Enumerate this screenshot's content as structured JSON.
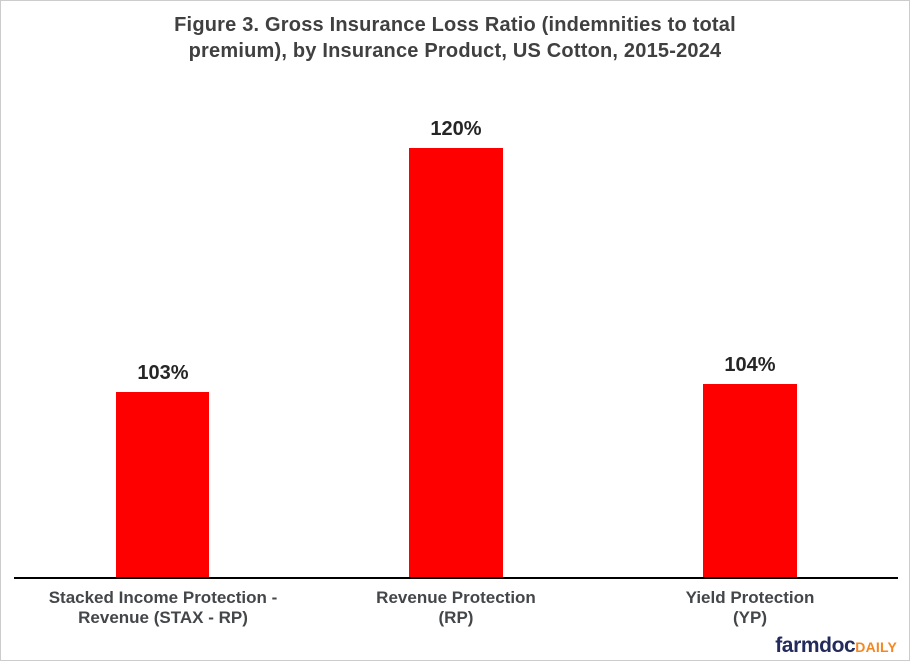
{
  "figure": {
    "title": {
      "line1": "Figure 3. Gross Insurance Loss Ratio (indemnities to total",
      "line2": "premium), by Insurance Product, US Cotton, 2015-2024"
    }
  },
  "chart_data": {
    "type": "bar",
    "title": "Figure 3. Gross Insurance Loss Ratio (indemnities to total premium), by Insurance Product, US Cotton, 2015-2024",
    "categories": [
      "Stacked Income Protection - Revenue (STAX - RP)",
      "Revenue Protection (RP)",
      "Yield Protection (YP)"
    ],
    "values": [
      103,
      120,
      104
    ],
    "unit": "%",
    "xlabel": "",
    "ylabel": "",
    "grid": false,
    "legend": false,
    "data_labels_shown": true,
    "bar_color": "#ff0000",
    "axis_line_color": "#000000",
    "bars": [
      {
        "category_line1": "Stacked Income Protection -",
        "category_line2": "Revenue (STAX - RP)",
        "value": 103,
        "label": "103%"
      },
      {
        "category_line1": "Revenue Protection",
        "category_line2": "(RP)",
        "value": 120,
        "label": "120%"
      },
      {
        "category_line1": "Yield Protection",
        "category_line2": "(YP)",
        "value": 104,
        "label": "104%"
      }
    ]
  },
  "branding": {
    "name_primary": "farmdoc",
    "name_secondary": "DAILY",
    "primary_color": "#232a5c",
    "secondary_color": "#f6861f"
  }
}
